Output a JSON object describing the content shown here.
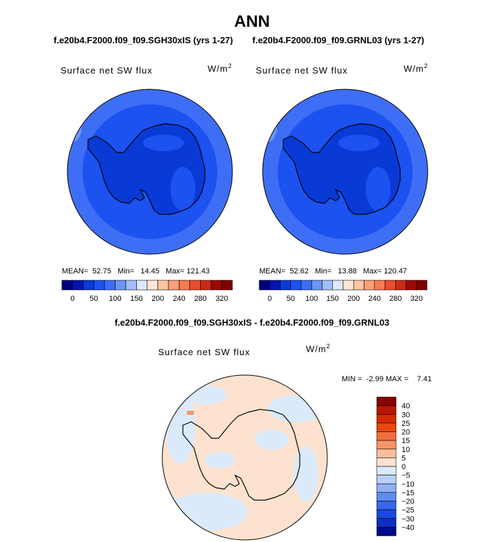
{
  "title": "ANN",
  "panels": [
    {
      "case_title": "f.e20b4.F2000.f09_f09.SGH30xIS (yrs 1-27)",
      "variable_label": "Surface net SW flux",
      "units_base": "W/m",
      "units_exp": "2",
      "stats": "MEAN=  52.75   Min=   14.45   Max= 121.43"
    },
    {
      "case_title": "f.e20b4.F2000.f09_f09.GRNL03 (yrs 1-27)",
      "variable_label": "Surface net SW flux",
      "units_base": "W/m",
      "units_exp": "2",
      "stats": "MEAN=  52.62   Min=   13.88   Max= 120.47"
    }
  ],
  "diff": {
    "title": "f.e20b4.F2000.f09_f09.SGH30xIS - f.e20b4.F2000.f09_f09.GRNL03",
    "variable_label": "Surface net SW flux",
    "units_base": "W/m",
    "units_exp": "2",
    "stats": "MIN =  -2.99 MAX =    7.41"
  },
  "chart_data": [
    {
      "type": "heatmap",
      "projection": "south-polar stereographic",
      "title": "f.e20b4.F2000.f09_f09.SGH30xIS (yrs 1-27)",
      "variable": "Surface net SW flux",
      "units": "W/m2",
      "mean": 52.75,
      "min": 14.45,
      "max": 121.43,
      "colorbar": {
        "orientation": "horizontal",
        "levels": [
          0,
          25,
          50,
          75,
          100,
          125,
          150,
          175,
          200,
          220,
          240,
          260,
          280,
          300,
          320
        ],
        "tick_labels": [
          "0",
          "50",
          "100",
          "150",
          "200",
          "240",
          "280",
          "320"
        ],
        "colors": [
          "#00007f",
          "#0015b0",
          "#0a3ad6",
          "#1b52f0",
          "#3e6ef5",
          "#6c95f7",
          "#a3bffa",
          "#dde9fb",
          "#fde6d4",
          "#fcc5a4",
          "#f9a07a",
          "#f47a52",
          "#ea4e2d",
          "#cc2a16",
          "#990a05",
          "#7f0000"
        ]
      }
    },
    {
      "type": "heatmap",
      "projection": "south-polar stereographic",
      "title": "f.e20b4.F2000.f09_f09.GRNL03 (yrs 1-27)",
      "variable": "Surface net SW flux",
      "units": "W/m2",
      "mean": 52.62,
      "min": 13.88,
      "max": 120.47,
      "colorbar": {
        "orientation": "horizontal",
        "levels": [
          0,
          25,
          50,
          75,
          100,
          125,
          150,
          175,
          200,
          220,
          240,
          260,
          280,
          300,
          320
        ],
        "tick_labels": [
          "0",
          "50",
          "100",
          "150",
          "200",
          "240",
          "280",
          "320"
        ],
        "colors": [
          "#00007f",
          "#0015b0",
          "#0a3ad6",
          "#1b52f0",
          "#3e6ef5",
          "#6c95f7",
          "#a3bffa",
          "#dde9fb",
          "#fde6d4",
          "#fcc5a4",
          "#f9a07a",
          "#f47a52",
          "#ea4e2d",
          "#cc2a16",
          "#990a05",
          "#7f0000"
        ]
      }
    },
    {
      "type": "heatmap",
      "projection": "south-polar stereographic",
      "title": "f.e20b4.F2000.f09_f09.SGH30xIS - f.e20b4.F2000.f09_f09.GRNL03",
      "variable": "Surface net SW flux",
      "units": "W/m2",
      "min": -2.99,
      "max": 7.41,
      "colorbar": {
        "orientation": "vertical",
        "tick_labels": [
          "40",
          "30",
          "25",
          "20",
          "15",
          "10",
          "5",
          "0",
          "−5",
          "−10",
          "−15",
          "−20",
          "−25",
          "−30",
          "−40"
        ],
        "colors": [
          "#8b0000",
          "#b81503",
          "#d42b05",
          "#e8480e",
          "#f26f3c",
          "#f79466",
          "#fbbf9c",
          "#fde3cf",
          "#dbeafb",
          "#b8d0f7",
          "#8fb0f3",
          "#5f8cf0",
          "#3866ec",
          "#1b48e0",
          "#0d2ec0",
          "#000a8a"
        ]
      }
    }
  ]
}
